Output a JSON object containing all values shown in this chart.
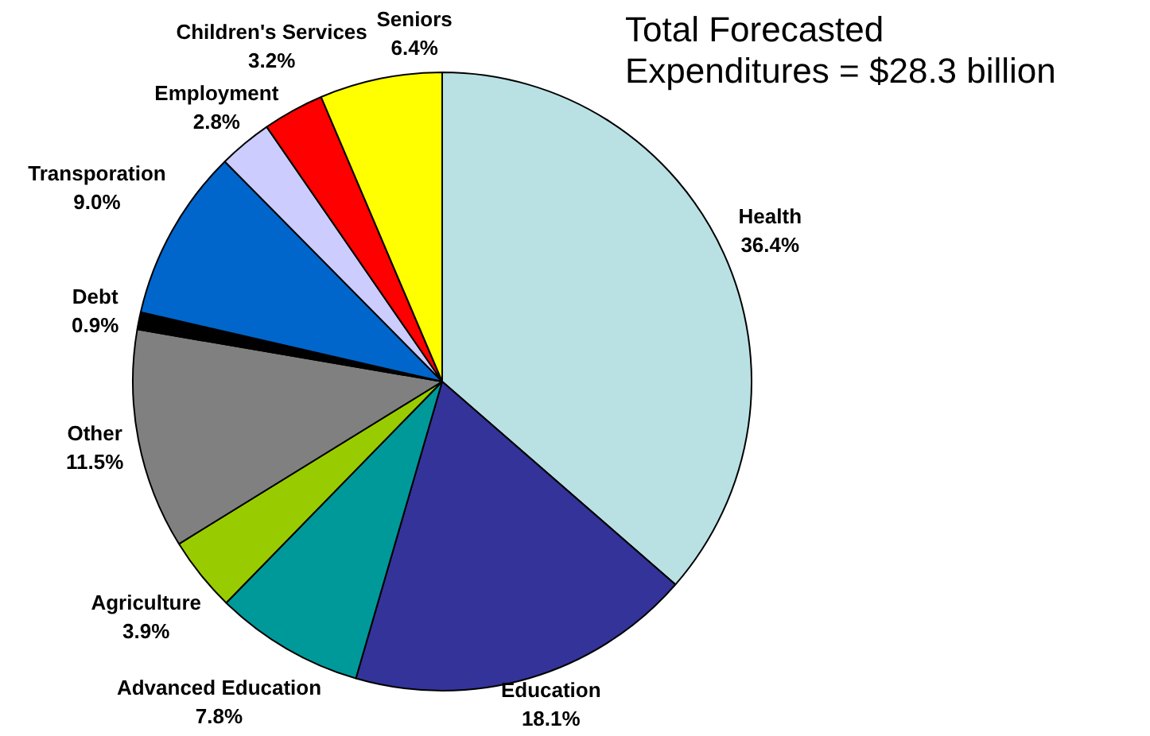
{
  "chart_data": {
    "type": "pie",
    "title": "Total Forecasted\nExpenditures = $28.3 billion",
    "categories": [
      "Health",
      "Education",
      "Advanced Education",
      "Agriculture",
      "Other",
      "Debt",
      "Transporation",
      "Employment",
      "Children's Services",
      "Seniors"
    ],
    "values": [
      36.4,
      18.1,
      7.8,
      3.9,
      11.5,
      0.9,
      9.0,
      2.8,
      3.2,
      6.4
    ],
    "colors": [
      "#b9e1e4",
      "#333399",
      "#009999",
      "#99cc00",
      "#808080",
      "#000000",
      "#0066cc",
      "#ccccff",
      "#ff0000",
      "#ffff00"
    ],
    "value_labels": [
      "36.4%",
      "18.1%",
      "7.8%",
      "3.9%",
      "11.5%",
      "0.9%",
      "9.0%",
      "2.8%",
      "3.2%",
      "6.4%"
    ],
    "legend": false
  }
}
